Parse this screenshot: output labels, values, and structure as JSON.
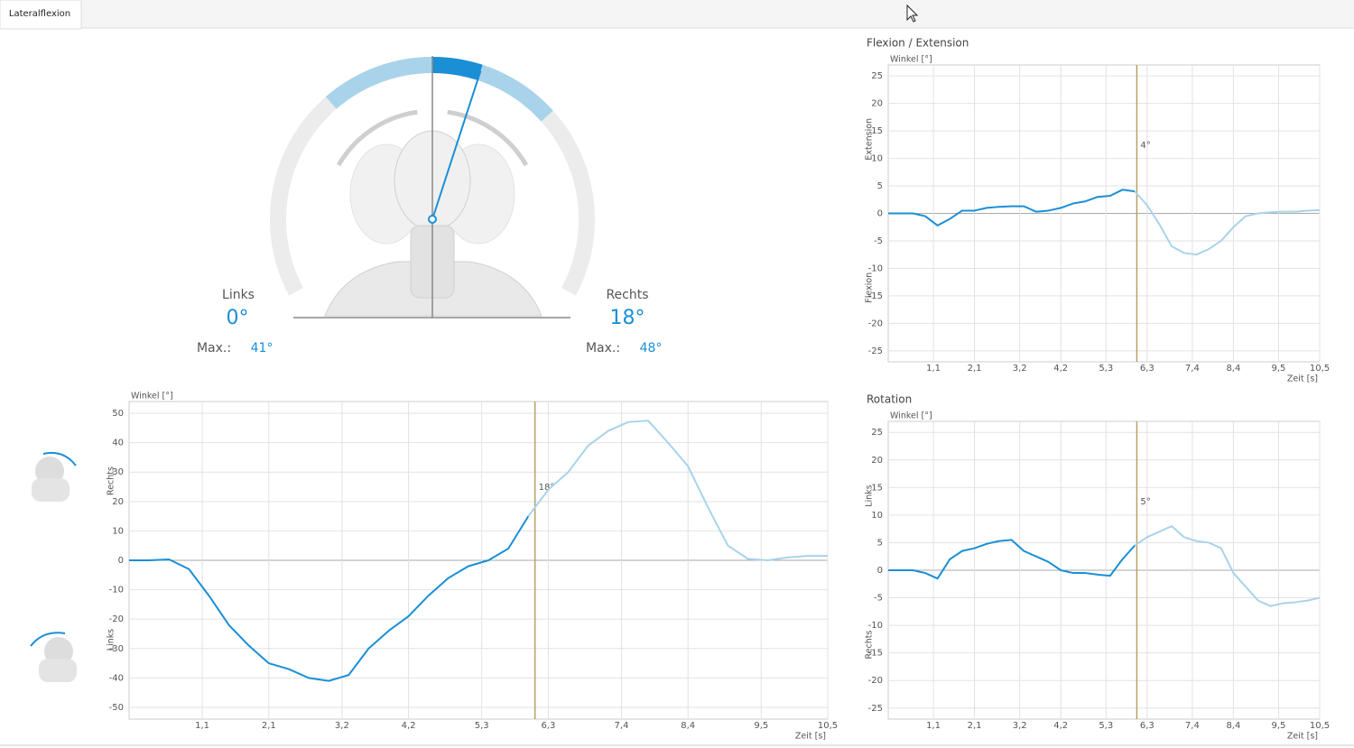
{
  "tab": "Lateralflexion",
  "gauge": {
    "left_label": "Links",
    "left_value": {
      "value": 0,
      "label": "0°"
    },
    "left_max_label": "Max.:",
    "left_max": {
      "value": 41,
      "label": "41°"
    },
    "right_label": "Rechts",
    "right_value": {
      "value": 18,
      "label": "18°"
    },
    "right_max_label": "Max.:",
    "right_max": {
      "value": 48,
      "label": "48°"
    }
  },
  "chart_data": [
    {
      "type": "line",
      "y_label": "Winkel [°]",
      "x_label": "Zeit [s]",
      "pos_label": "Rechts",
      "neg_label": "Links",
      "xlim": [
        0,
        10.5
      ],
      "ylim": [
        -54,
        54
      ],
      "xticks": [
        {
          "value": 1.1,
          "label": "1,1"
        },
        {
          "value": 2.1,
          "label": "2,1"
        },
        {
          "value": 3.2,
          "label": "3,2"
        },
        {
          "value": 4.2,
          "label": "4,2"
        },
        {
          "value": 5.3,
          "label": "5,3"
        },
        {
          "value": 6.3,
          "label": "6,3"
        },
        {
          "value": 7.4,
          "label": "7,4"
        },
        {
          "value": 8.4,
          "label": "8,4"
        },
        {
          "value": 9.5,
          "label": "9,5"
        },
        {
          "value": 10.5,
          "label": "10,5"
        }
      ],
      "yticks": [
        -50,
        -40,
        -30,
        -20,
        -10,
        0,
        10,
        20,
        30,
        40,
        50
      ],
      "cursor": {
        "x": 6.1,
        "label": "18°",
        "color": "#b8a064"
      },
      "x": [
        0,
        0.3,
        0.6,
        0.9,
        1.2,
        1.5,
        1.8,
        2.1,
        2.4,
        2.7,
        3.0,
        3.3,
        3.6,
        3.9,
        4.2,
        4.5,
        4.8,
        5.1,
        5.4,
        5.7,
        6.0,
        6.3,
        6.6,
        6.9,
        7.2,
        7.5,
        7.8,
        8.1,
        8.4,
        8.7,
        9.0,
        9.3,
        9.6,
        9.9,
        10.2,
        10.5
      ],
      "series": [
        {
          "color": "#1a8fd6",
          "after_color": "#a9d3ea",
          "values": [
            0,
            0,
            0.3,
            -3,
            -12,
            -22,
            -29,
            -35,
            -37,
            -40,
            -41,
            -39,
            -30,
            -24,
            -19,
            -12,
            -6,
            -2,
            0,
            4,
            15,
            24,
            30,
            39,
            44,
            47,
            47.5,
            40,
            32,
            18,
            5,
            0.5,
            0,
            1,
            1.5,
            1.5
          ]
        }
      ]
    },
    {
      "type": "line",
      "title": "Flexion / Extension",
      "y_label": "Winkel [°]",
      "x_label": "Zeit [s]",
      "pos_label": "Extension",
      "neg_label": "Flexion",
      "xlim": [
        0,
        10.5
      ],
      "ylim": [
        -27,
        27
      ],
      "xticks": [
        {
          "value": 1.1,
          "label": "1,1"
        },
        {
          "value": 2.1,
          "label": "2,1"
        },
        {
          "value": 3.2,
          "label": "3,2"
        },
        {
          "value": 4.2,
          "label": "4,2"
        },
        {
          "value": 5.3,
          "label": "5,3"
        },
        {
          "value": 6.3,
          "label": "6,3"
        },
        {
          "value": 7.4,
          "label": "7,4"
        },
        {
          "value": 8.4,
          "label": "8,4"
        },
        {
          "value": 9.5,
          "label": "9,5"
        },
        {
          "value": 10.5,
          "label": "10,5"
        }
      ],
      "yticks": [
        -25,
        -20,
        -15,
        -10,
        -5,
        0,
        5,
        10,
        15,
        20,
        25
      ],
      "cursor": {
        "x": 6.05,
        "label": "4°",
        "color": "#b8a064"
      },
      "x": [
        0,
        0.3,
        0.6,
        0.9,
        1.2,
        1.5,
        1.8,
        2.1,
        2.4,
        2.7,
        3.0,
        3.3,
        3.6,
        3.9,
        4.2,
        4.5,
        4.8,
        5.1,
        5.4,
        5.7,
        6.0,
        6.3,
        6.6,
        6.9,
        7.2,
        7.5,
        7.8,
        8.1,
        8.4,
        8.7,
        9.0,
        9.3,
        9.6,
        9.9,
        10.2,
        10.5
      ],
      "series": [
        {
          "color": "#1a8fd6",
          "after_color": "#a9d3ea",
          "values": [
            0,
            0,
            0,
            -0.5,
            -2.2,
            -1,
            0.5,
            0.5,
            1,
            1.2,
            1.3,
            1.3,
            0.3,
            0.5,
            1,
            1.8,
            2.2,
            3,
            3.2,
            4.3,
            4,
            1.5,
            -2,
            -6,
            -7.2,
            -7.5,
            -6.5,
            -5,
            -2.5,
            -0.5,
            0,
            0.2,
            0.3,
            0.3,
            0.5,
            0.6
          ]
        }
      ]
    },
    {
      "type": "line",
      "title": "Rotation",
      "y_label": "Winkel [°]",
      "x_label": "Zeit [s]",
      "pos_label": "Links",
      "neg_label": "Rechts",
      "xlim": [
        0,
        10.5
      ],
      "ylim": [
        -27,
        27
      ],
      "xticks": [
        {
          "value": 1.1,
          "label": "1,1"
        },
        {
          "value": 2.1,
          "label": "2,1"
        },
        {
          "value": 3.2,
          "label": "3,2"
        },
        {
          "value": 4.2,
          "label": "4,2"
        },
        {
          "value": 5.3,
          "label": "5,3"
        },
        {
          "value": 6.3,
          "label": "6,3"
        },
        {
          "value": 7.4,
          "label": "7,4"
        },
        {
          "value": 8.4,
          "label": "8,4"
        },
        {
          "value": 9.5,
          "label": "9,5"
        },
        {
          "value": 10.5,
          "label": "10,5"
        }
      ],
      "yticks": [
        -25,
        -20,
        -15,
        -10,
        -5,
        0,
        5,
        10,
        15,
        20,
        25
      ],
      "cursor": {
        "x": 6.05,
        "label": "5°",
        "color": "#b8a064"
      },
      "x": [
        0,
        0.3,
        0.6,
        0.9,
        1.2,
        1.5,
        1.8,
        2.1,
        2.4,
        2.7,
        3.0,
        3.3,
        3.6,
        3.9,
        4.2,
        4.5,
        4.8,
        5.1,
        5.4,
        5.7,
        6.0,
        6.3,
        6.6,
        6.9,
        7.2,
        7.5,
        7.8,
        8.1,
        8.4,
        8.7,
        9.0,
        9.3,
        9.6,
        9.9,
        10.2,
        10.5
      ],
      "series": [
        {
          "color": "#1a8fd6",
          "after_color": "#a9d3ea",
          "values": [
            0,
            0,
            0,
            -0.5,
            -1.5,
            2,
            3.5,
            4,
            4.8,
            5.3,
            5.5,
            3.5,
            2.5,
            1.5,
            0,
            -0.5,
            -0.5,
            -0.8,
            -1,
            2,
            4.5,
            6,
            7,
            8,
            6,
            5.3,
            5,
            4,
            -0.5,
            -3,
            -5.5,
            -6.5,
            -6,
            -5.8,
            -5.5,
            -5
          ]
        }
      ]
    }
  ]
}
